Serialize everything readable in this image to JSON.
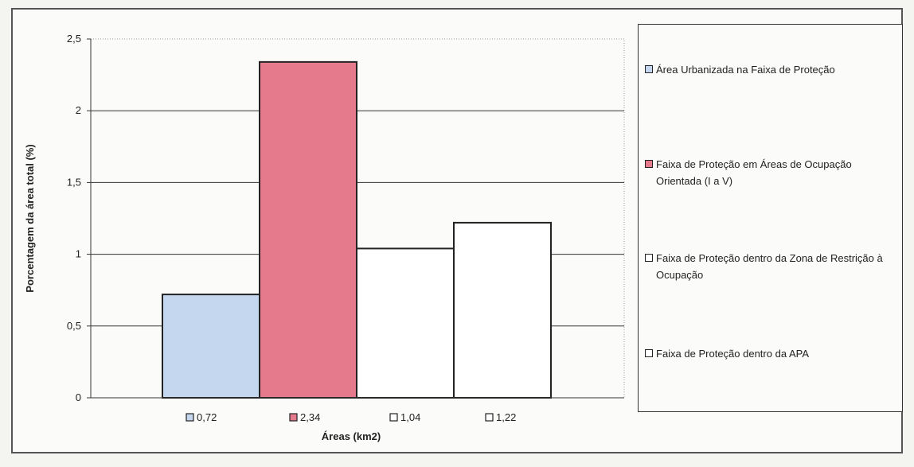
{
  "chart_data": {
    "type": "bar",
    "title": "",
    "xlabel": "Áreas (km2)",
    "ylabel": "Porcentagem da área total (%)",
    "ylim": [
      0,
      2.5
    ],
    "yticks": [
      "0",
      "0,5",
      "1",
      "1,5",
      "2",
      "2,5"
    ],
    "grid": true,
    "legend_position": "right",
    "series": [
      {
        "name": "Área Urbanizada na Faixa de Proteção",
        "category_label": "0,72",
        "value": 0.72,
        "color": "#c5d7ee"
      },
      {
        "name": "Faixa de Proteção em Áreas de Ocupação Orientada (I a V)",
        "category_label": "2,34",
        "value": 2.34,
        "color": "#e47a8c"
      },
      {
        "name": "Faixa de Proteção dentro da Zona de Restrição à Ocupação",
        "category_label": "1,04",
        "value": 1.04,
        "color": "#ffffff"
      },
      {
        "name": "Faixa de Proteção dentro da APA",
        "category_label": "1,22",
        "value": 1.22,
        "color": "#ffffff"
      }
    ]
  }
}
